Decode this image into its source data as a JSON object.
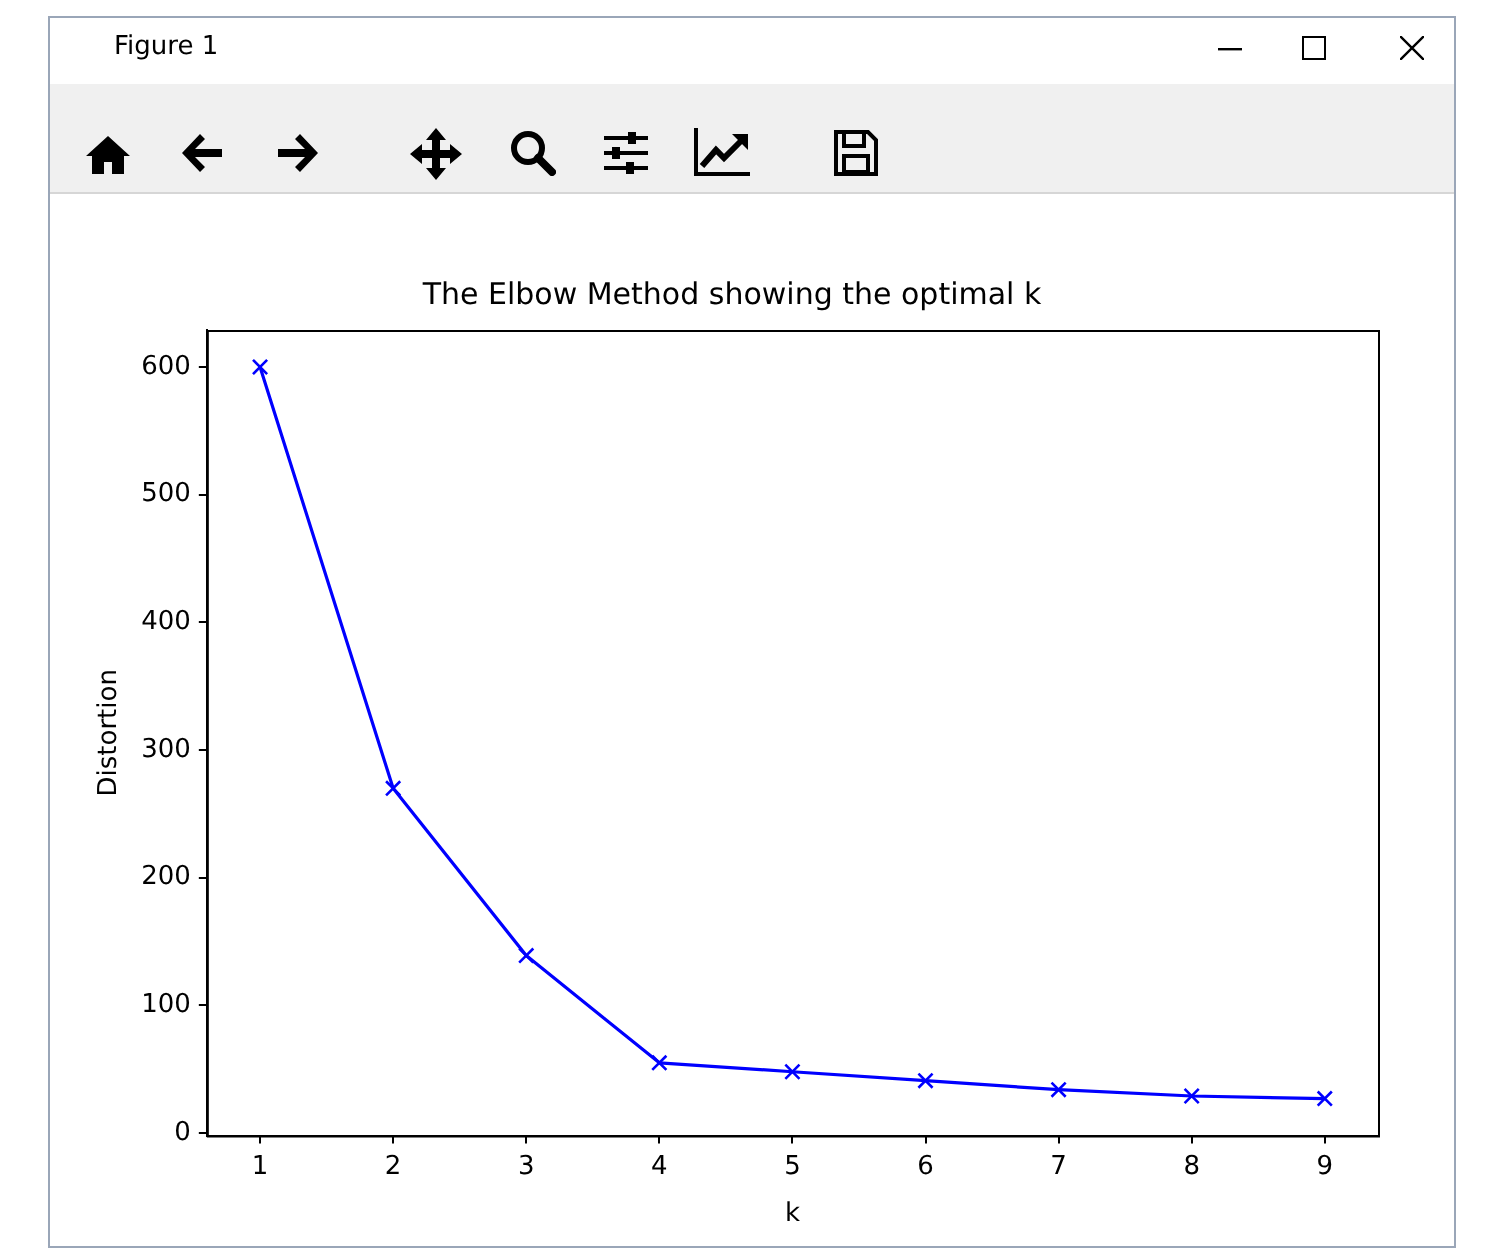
{
  "chart_data": {
    "type": "line",
    "title": "The Elbow Method showing the optimal k",
    "xlabel": "k",
    "ylabel": "Distortion",
    "annotations": [
      "Figure 1"
    ],
    "x": [
      1,
      2,
      3,
      4,
      5,
      6,
      7,
      8,
      9
    ],
    "series": [
      {
        "color": "#0000ff",
        "values": [
          600,
          270,
          139,
          55,
          48,
          41,
          34,
          29,
          27
        ]
      }
    ],
    "xlim": [
      0.6,
      9.4
    ],
    "xticks": [
      1,
      2,
      3,
      4,
      5,
      6,
      7,
      8,
      9
    ],
    "ylim": [
      -2,
      629
    ],
    "yticks": [
      0,
      100,
      200,
      300,
      400,
      500,
      600
    ],
    "grid": false,
    "legend": false,
    "marker": "cross",
    "line_style": "solid"
  }
}
